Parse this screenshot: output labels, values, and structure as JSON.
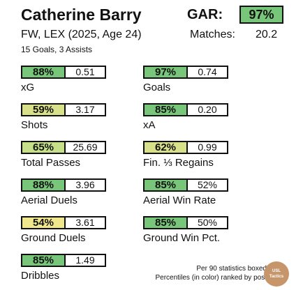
{
  "player": {
    "name": "Catherine Barry",
    "info": "FW, LEX (2025, Age 24)",
    "summary": "15 Goals,  3 Assists"
  },
  "gar": {
    "label": "GAR:",
    "value": "97%",
    "color": "#78c679"
  },
  "matches": {
    "label": "Matches:",
    "value": "20.2"
  },
  "metrics": [
    {
      "id": "xg",
      "pct": "88%",
      "value": "0.51",
      "label": "xG",
      "color": "#78c679"
    },
    {
      "id": "goals",
      "pct": "97%",
      "value": "0.74",
      "label": "Goals",
      "color": "#78c679"
    },
    {
      "id": "shots",
      "pct": "59%",
      "value": "3.17",
      "label": "Shots",
      "color": "#d9e08a"
    },
    {
      "id": "xa",
      "pct": "85%",
      "value": "0.20",
      "label": "xA",
      "color": "#78c679"
    },
    {
      "id": "total-passes",
      "pct": "65%",
      "value": "25.69",
      "label": "Total Passes",
      "color": "#c6e089"
    },
    {
      "id": "fin-regains",
      "pct": "62%",
      "value": "0.99",
      "label": "Fin. ⅓ Regains",
      "color": "#d9e08a"
    },
    {
      "id": "aerial-duels",
      "pct": "88%",
      "value": "3.96",
      "label": "Aerial Duels",
      "color": "#78c679"
    },
    {
      "id": "aerial-win-rate",
      "pct": "85%",
      "value": "52%",
      "label": "Aerial Win Rate",
      "color": "#78c679"
    },
    {
      "id": "ground-duels",
      "pct": "54%",
      "value": "3.61",
      "label": "Ground Duels",
      "color": "#f0e68c"
    },
    {
      "id": "ground-win-pct",
      "pct": "85%",
      "value": "50%",
      "label": "Ground Win Pct.",
      "color": "#78c679"
    },
    {
      "id": "dribbles",
      "pct": "85%",
      "value": "1.49",
      "label": "Dribbles",
      "color": "#78c679"
    }
  ],
  "notes": {
    "line1": "Per 90 statistics boxed",
    "line2": "Percentiles (in color) ranked by pos."
  },
  "badge": {
    "line1": "USL",
    "line2": "Tactics"
  }
}
